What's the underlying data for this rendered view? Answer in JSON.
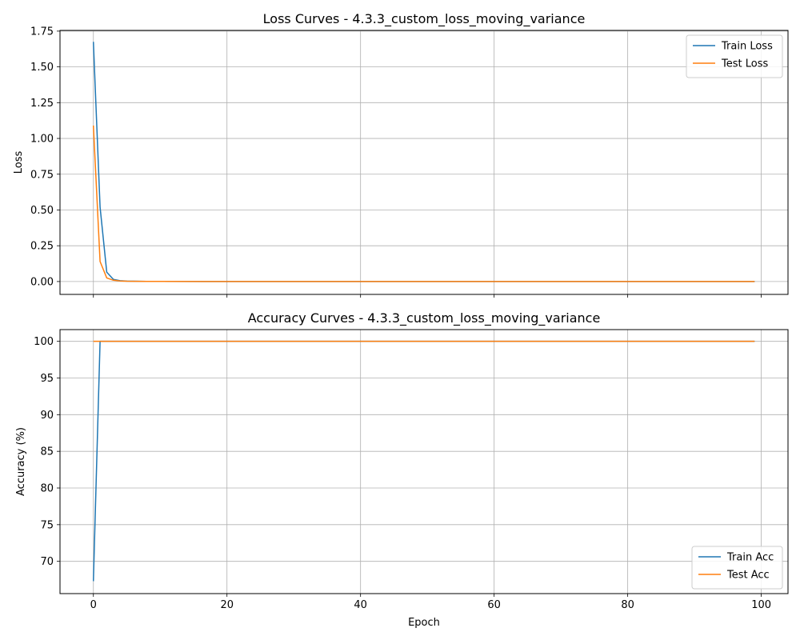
{
  "chart_data": [
    {
      "type": "line",
      "title": "Loss Curves - 4.3.3_custom_loss_moving_variance",
      "xlabel": "",
      "ylabel": "Loss",
      "xlim": [
        -5,
        104
      ],
      "ylim": [
        -0.09,
        1.755
      ],
      "x_ticks": [
        0,
        20,
        40,
        60,
        80,
        100
      ],
      "x_tick_labels_visible": false,
      "y_ticks": [
        0.0,
        0.25,
        0.5,
        0.75,
        1.0,
        1.25,
        1.5,
        1.75
      ],
      "y_tick_labels": [
        "0.00",
        "0.25",
        "0.50",
        "0.75",
        "1.00",
        "1.25",
        "1.50",
        "1.75"
      ],
      "grid": true,
      "legend_position": "top-right",
      "series": [
        {
          "name": "Train Loss",
          "color": "#1f77b4",
          "points": [
            [
              0,
              1.675
            ],
            [
              1,
              0.52
            ],
            [
              2,
              0.065
            ],
            [
              3,
              0.015
            ],
            [
              4,
              0.006
            ],
            [
              5,
              0.003
            ],
            [
              6,
              0.002
            ],
            [
              8,
              0.001
            ],
            [
              10,
              0.0005
            ],
            [
              20,
              0.0002
            ],
            [
              99,
              0.0001
            ]
          ]
        },
        {
          "name": "Test Loss",
          "color": "#ff7f0e",
          "points": [
            [
              0,
              1.09
            ],
            [
              1,
              0.14
            ],
            [
              2,
              0.025
            ],
            [
              3,
              0.009
            ],
            [
              4,
              0.004
            ],
            [
              5,
              0.002
            ],
            [
              6,
              0.0015
            ],
            [
              8,
              0.001
            ],
            [
              10,
              0.0005
            ],
            [
              20,
              0.0002
            ],
            [
              99,
              0.0001
            ]
          ]
        }
      ]
    },
    {
      "type": "line",
      "title": "Accuracy Curves - 4.3.3_custom_loss_moving_variance",
      "xlabel": "Epoch",
      "ylabel": "Accuracy (%)",
      "xlim": [
        -5,
        104
      ],
      "ylim": [
        65.6,
        101.6
      ],
      "x_ticks": [
        0,
        20,
        40,
        60,
        80,
        100
      ],
      "x_tick_labels": [
        "0",
        "20",
        "40",
        "60",
        "80",
        "100"
      ],
      "y_ticks": [
        70,
        75,
        80,
        85,
        90,
        95,
        100
      ],
      "y_tick_labels": [
        "70",
        "75",
        "80",
        "85",
        "90",
        "95",
        "100"
      ],
      "grid": true,
      "legend_position": "bottom-right",
      "series": [
        {
          "name": "Train Acc",
          "color": "#1f77b4",
          "points": [
            [
              0,
              67.3
            ],
            [
              1,
              100
            ],
            [
              99,
              100
            ]
          ]
        },
        {
          "name": "Test Acc",
          "color": "#ff7f0e",
          "points": [
            [
              0,
              100
            ],
            [
              99,
              100
            ]
          ]
        }
      ]
    }
  ]
}
